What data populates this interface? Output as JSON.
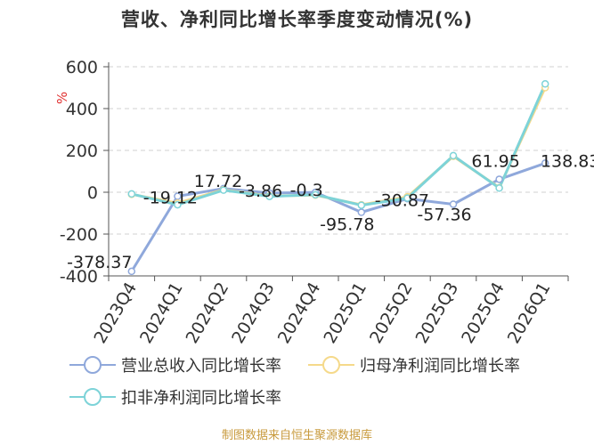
{
  "title": "营收、净利同比增长率季度变动情况(%)",
  "source_note": "制图数据来自恒生聚源数据库",
  "chart_data": {
    "type": "line",
    "title": "营收、净利同比增长率季度变动情况(%)",
    "ylabel": "%",
    "ylim": [
      -400,
      600
    ],
    "yticks": [
      600,
      400,
      200,
      0,
      -200,
      -400
    ],
    "grid": true,
    "legend_position": "bottom",
    "categories": [
      "2023Q4",
      "2024Q1",
      "2024Q2",
      "2024Q3",
      "2024Q4",
      "2025Q1",
      "2025Q2",
      "2025Q3",
      "2025Q4",
      "2026Q1"
    ],
    "series": [
      {
        "name": "营业总收入同比增长率",
        "color": "#8fa8db",
        "values": [
          -378.37,
          -19.12,
          17.72,
          -3.86,
          -0.3,
          -95.78,
          -30.87,
          -57.36,
          61.95,
          138.83
        ],
        "labels": [
          "-378.37",
          "-19.12",
          "17.72",
          "-3.86",
          "-0.3",
          "-95.78",
          "-30.87",
          "-57.36",
          "61.95",
          "138.83"
        ]
      },
      {
        "name": "归母净利润同比增长率",
        "color": "#f5d98a",
        "values": [
          -10,
          -52,
          12,
          -18,
          -14,
          -60,
          -22,
          172,
          22,
          500
        ],
        "labels": []
      },
      {
        "name": "扣非净利润同比增长率",
        "color": "#7dd3d8",
        "values": [
          -8,
          -60,
          10,
          -20,
          -12,
          -62,
          -28,
          175,
          20,
          518
        ],
        "labels": []
      }
    ]
  }
}
